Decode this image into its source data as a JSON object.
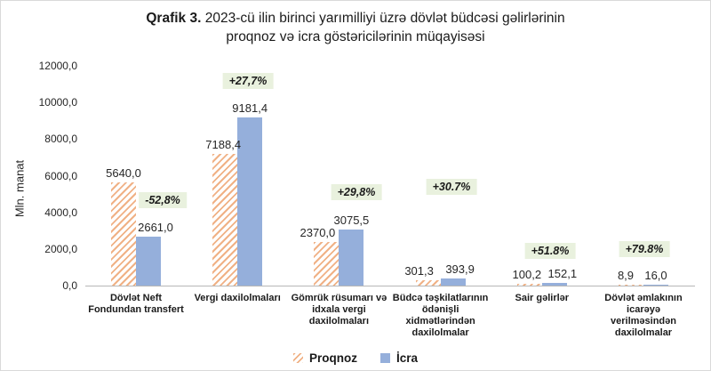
{
  "title": {
    "bold_prefix": "Qrafik 3.",
    "line1_rest": " 2023-cü ilin birinci yarımilliyi üzrə dövlət büdcəsi gəlirlərinin",
    "line2": "proqnoz və icra göstəricilərinin müqayisəsi"
  },
  "y_axis": {
    "title": "Mln. manat",
    "tick_labels": [
      "0,0",
      "2000,0",
      "4000,0",
      "6000,0",
      "8000,0",
      "10000,0",
      "12000,0"
    ]
  },
  "legend": {
    "items": [
      {
        "label": "Proqnoz",
        "swatch": "hatched-orange"
      },
      {
        "label": "İcra",
        "swatch": "solid-blue"
      }
    ]
  },
  "colors": {
    "icra_bar": "#95AFDB",
    "proqnoz_hatch": "#F0B185",
    "badge_background": "#E9F1DE",
    "axis_line": "#B7B7B7",
    "text": "#262626"
  },
  "chart_data": {
    "type": "bar",
    "title": "Qrafik 3. 2023-cü ilin birinci yarımilliyi üzrə dövlət büdcəsi gəlirlərinin proqnoz və icra göstəricilərinin müqayisəsi",
    "ylabel": "Mln. manat",
    "ylim": [
      0,
      12000
    ],
    "y_tick_step": 2000,
    "grid": false,
    "legend_position": "bottom",
    "categories": [
      "Dövlət Neft Fondundan transfert",
      "Vergi daxilolmaları",
      "Gömrük rüsumarı və idxala vergi daxilolmaları",
      "Büdcə təşkilatlarının ödənişli xidmətlərindən daxilolmalar",
      "Sair gəlirlər",
      "Dövlət əmlakının icarəyə verilməsindən daxilolmalar"
    ],
    "category_label_lines": [
      [
        "Dövlət Neft",
        "Fondundan transfert"
      ],
      [
        "Vergi daxilolmaları"
      ],
      [
        "Gömrük rüsumarı və",
        "idxala vergi",
        "daxilolmaları"
      ],
      [
        "Büdcə təşkilatlarının",
        "ödənişli",
        "xidmətlərindən",
        "daxilolmalar"
      ],
      [
        "Sair gəlirlər"
      ],
      [
        "Dövlət əmlakının",
        "icarəyə",
        "verilməsindən",
        "daxilolmalar"
      ]
    ],
    "series": [
      {
        "name": "Proqnoz",
        "values": [
          5640.0,
          7188.4,
          2370.0,
          301.3,
          100.2,
          8.9
        ],
        "labels": [
          "5640,0",
          "7188,4",
          "2370,0",
          "301,3",
          "100,2",
          "8,9"
        ]
      },
      {
        "name": "İcra",
        "values": [
          2661.0,
          9181.4,
          3075.5,
          393.9,
          152.1,
          16.0
        ],
        "labels": [
          "2661,0",
          "9181,4",
          "3075,5",
          "393,9",
          "152,1",
          "16,0"
        ]
      }
    ],
    "change_badges": [
      "-52,8%",
      "+27,7%",
      "+29,8%",
      "+30.7%",
      "+51.8%",
      "+79.8%"
    ]
  }
}
